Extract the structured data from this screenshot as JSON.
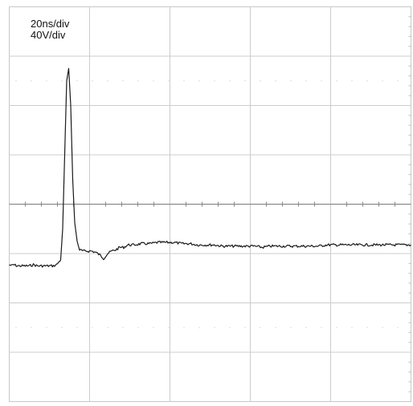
{
  "chart_data": {
    "type": "line",
    "title": "",
    "xlabel": "",
    "ylabel": "",
    "time_scale": "20ns/div",
    "voltage_scale": "40V/div",
    "grid": true,
    "divisions": {
      "x": 5,
      "y": 8
    },
    "xlim": [
      0,
      100
    ],
    "ylim": [
      -160,
      160
    ],
    "x_unit": "ns",
    "y_unit": "V",
    "series": [
      {
        "points": [
          [
            0.0,
            -49
          ],
          [
            0.5,
            -50
          ],
          [
            1,
            -49
          ],
          [
            2,
            -50
          ],
          [
            3,
            -50
          ],
          [
            4,
            -50
          ],
          [
            5,
            -50
          ],
          [
            6,
            -49
          ],
          [
            7,
            -50
          ],
          [
            8,
            -50
          ],
          [
            9,
            -50
          ],
          [
            10,
            -50
          ],
          [
            11,
            -50
          ],
          [
            11.8,
            -49
          ],
          [
            12.8,
            -45
          ],
          [
            13.3,
            -20
          ],
          [
            13.8,
            40
          ],
          [
            14.3,
            100
          ],
          [
            14.8,
            110
          ],
          [
            15.3,
            80
          ],
          [
            15.8,
            20
          ],
          [
            16.3,
            -15
          ],
          [
            16.9,
            -30
          ],
          [
            17.5,
            -37
          ],
          [
            18.5,
            -38
          ],
          [
            19.5,
            -38
          ],
          [
            20.5,
            -38
          ],
          [
            21.5,
            -39
          ],
          [
            22.5,
            -41
          ],
          [
            23.5,
            -44
          ],
          [
            24.5,
            -40
          ],
          [
            25.5,
            -38
          ],
          [
            26.5,
            -37
          ],
          [
            27.5,
            -35
          ],
          [
            28.5,
            -35
          ],
          [
            29.5,
            -33
          ],
          [
            31,
            -33
          ],
          [
            33,
            -32
          ],
          [
            35,
            -32
          ],
          [
            37,
            -31
          ],
          [
            39,
            -31
          ],
          [
            41,
            -31
          ],
          [
            43,
            -32
          ],
          [
            45,
            -32
          ],
          [
            47,
            -33
          ],
          [
            49,
            -33
          ],
          [
            51,
            -33
          ],
          [
            53,
            -34
          ],
          [
            55,
            -34
          ],
          [
            57,
            -34
          ],
          [
            59,
            -34
          ],
          [
            61,
            -34
          ],
          [
            63,
            -35
          ],
          [
            65,
            -34
          ],
          [
            67,
            -34
          ],
          [
            69,
            -34
          ],
          [
            71,
            -34
          ],
          [
            73,
            -34
          ],
          [
            75,
            -34
          ],
          [
            77,
            -34
          ],
          [
            79,
            -33
          ],
          [
            81,
            -33
          ],
          [
            83,
            -33
          ],
          [
            85,
            -33
          ],
          [
            87,
            -33
          ],
          [
            89,
            -33
          ],
          [
            91,
            -33
          ],
          [
            93,
            -33
          ],
          [
            95,
            -33
          ],
          [
            97,
            -33
          ],
          [
            99,
            -33
          ],
          [
            100,
            -33
          ]
        ]
      }
    ]
  }
}
